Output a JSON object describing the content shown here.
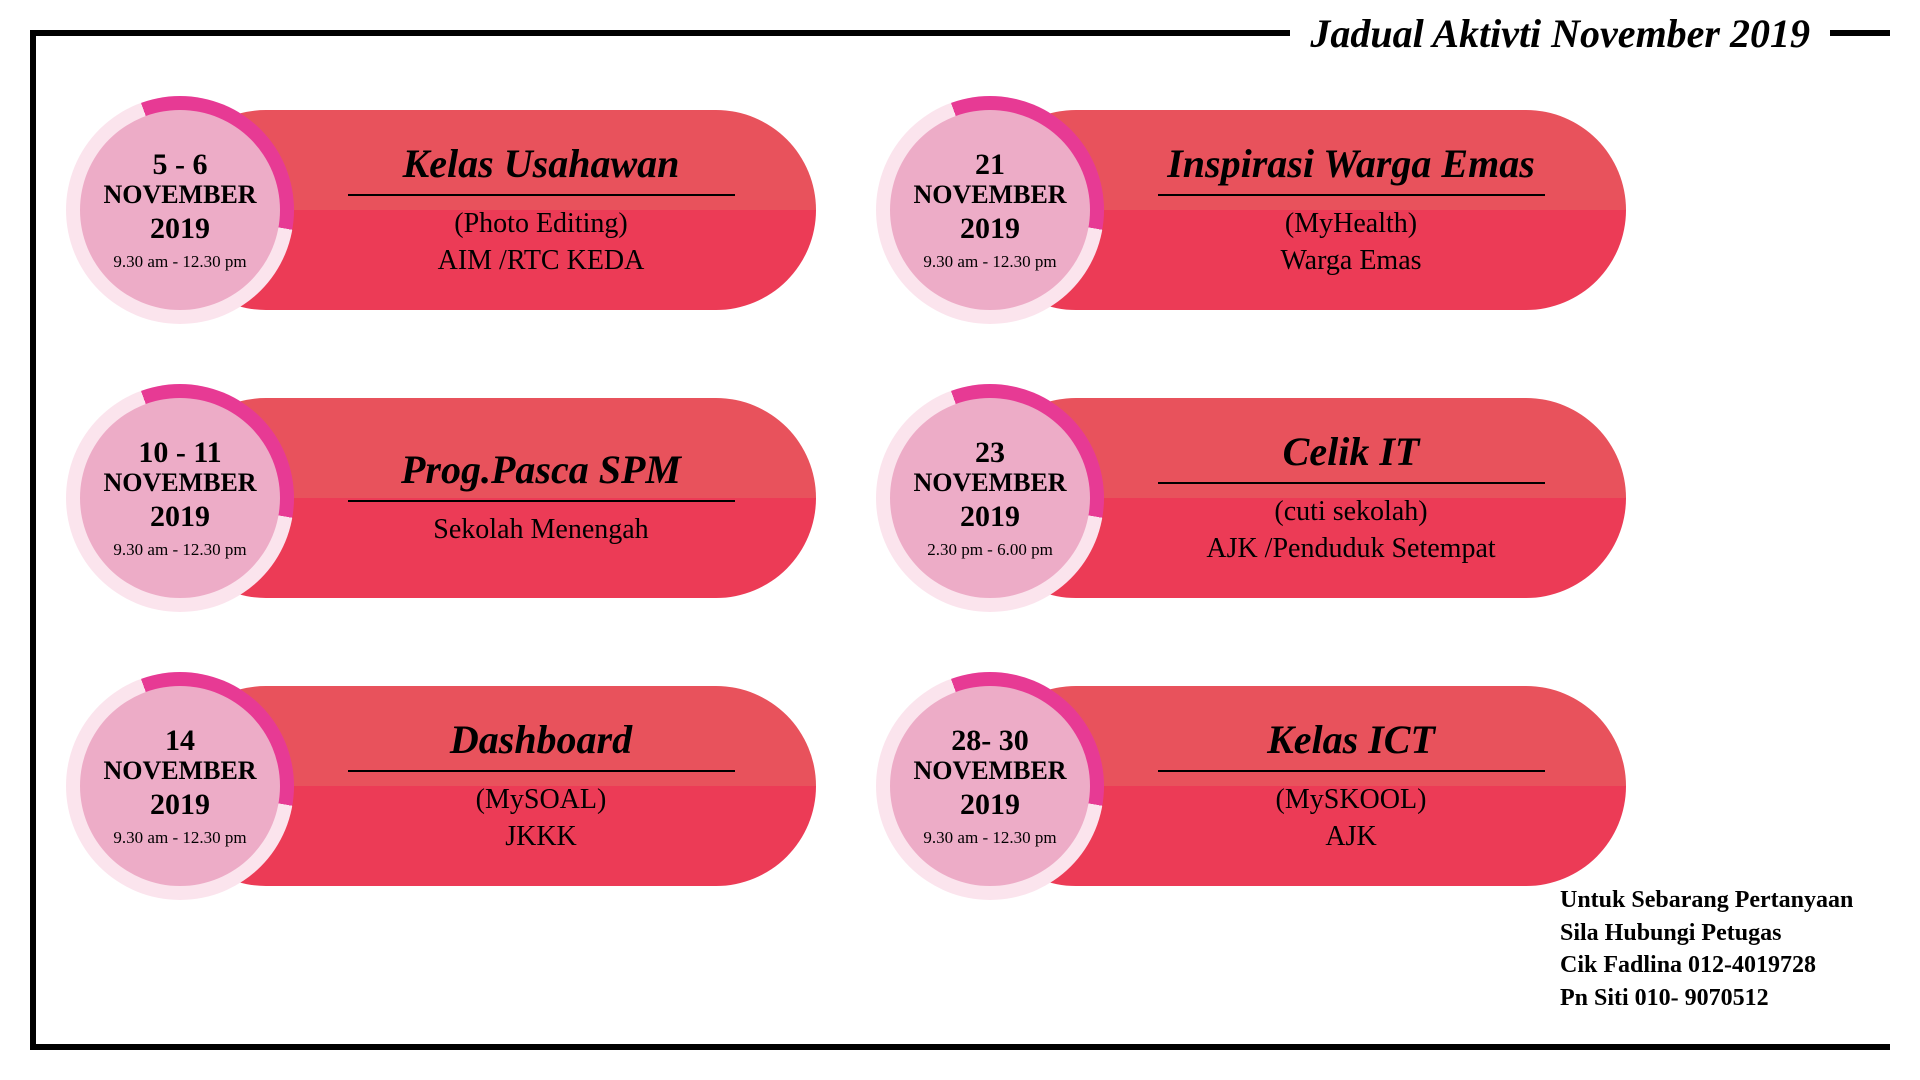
{
  "title": "Jadual Aktivti November 2019",
  "colors": {
    "pill_top": "#e8525c",
    "pill_bottom": "#ec3b56",
    "ring_light": "#fbe4ed",
    "ring_accent": "#e73a94",
    "badge_fill": "#edacc7",
    "frame": "#000000",
    "text": "#000000",
    "bg": "#ffffff"
  },
  "activities": [
    {
      "date_day": "5 - 6",
      "date_month": "NOVEMBER",
      "date_year": "2019",
      "time": "9.30 am - 12.30 pm",
      "title": "Kelas Usahawan",
      "subtitle": "(Photo Editing)",
      "org": "AIM /RTC KEDA"
    },
    {
      "date_day": "21",
      "date_month": "NOVEMBER",
      "date_year": "2019",
      "time": "9.30 am - 12.30 pm",
      "title": "Inspirasi Warga Emas",
      "subtitle": "(MyHealth)",
      "org": "Warga Emas"
    },
    {
      "date_day": "10 - 11",
      "date_month": "NOVEMBER",
      "date_year": "2019",
      "time": "9.30 am - 12.30 pm",
      "title": "Prog.Pasca SPM",
      "subtitle": "Sekolah Menengah",
      "org": ""
    },
    {
      "date_day": "23",
      "date_month": "NOVEMBER",
      "date_year": "2019",
      "time": "2.30 pm - 6.00 pm",
      "title": "Celik IT",
      "subtitle": "(cuti sekolah)",
      "org": "AJK /Penduduk Setempat"
    },
    {
      "date_day": "14",
      "date_month": "NOVEMBER",
      "date_year": "2019",
      "time": "9.30 am - 12.30 pm",
      "title": "Dashboard",
      "subtitle": "(MySOAL)",
      "org": "JKKK"
    },
    {
      "date_day": "28- 30",
      "date_month": "NOVEMBER",
      "date_year": "2019",
      "time": "9.30 am - 12.30 pm",
      "title": "Kelas ICT",
      "subtitle": "(MySKOOL)",
      "org": "AJK"
    }
  ],
  "contact": {
    "line1": "Untuk Sebarang Pertanyaan",
    "line2": "Sila Hubungi Petugas",
    "line3": "Cik Fadlina 012-4019728",
    "line4": "Pn Siti 010- 9070512"
  }
}
